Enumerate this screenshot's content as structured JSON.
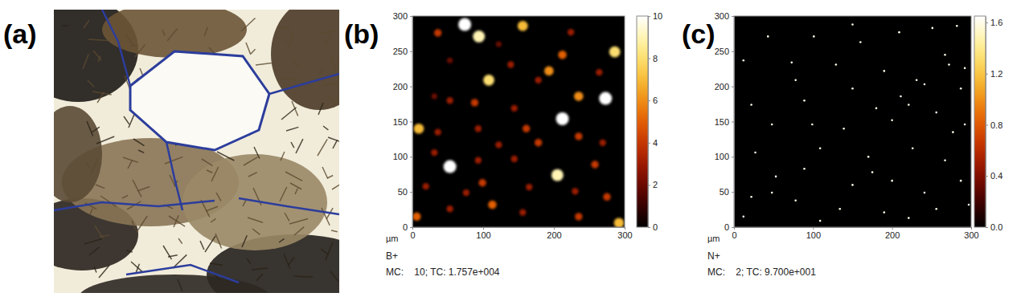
{
  "chart_data": [
    {
      "type": "image",
      "title": "(a)"
    },
    {
      "type": "heatmap",
      "title": "(b)",
      "x_label": "µm",
      "ion": "B+",
      "stats": "MC:    10; TC: 1.757e+004",
      "xlim": [
        0,
        300
      ],
      "ylim": [
        0,
        300
      ],
      "xticks": [
        0,
        100,
        200,
        300
      ],
      "yticks": [
        0,
        50,
        100,
        150,
        200,
        250,
        300
      ],
      "x": [
        74,
        94,
        156,
        108,
        212,
        193,
        235,
        273,
        286,
        212,
        53,
        205,
        113,
        9,
        6,
        292,
        36,
        139,
        178,
        53,
        88,
        144,
        161,
        93,
        36,
        235,
        269,
        122,
        178,
        31,
        93,
        144,
        258,
        99,
        19,
        165,
        230,
        275,
        53,
        156,
        235,
        76,
        264,
        31,
        224,
        122,
        53
      ],
      "y": [
        288,
        271,
        286,
        209,
        245,
        222,
        186,
        183,
        249,
        154,
        86,
        74,
        32,
        140,
        15,
        6,
        276,
        231,
        209,
        180,
        177,
        169,
        140,
        140,
        135,
        129,
        120,
        117,
        120,
        106,
        95,
        97,
        89,
        63,
        58,
        57,
        51,
        43,
        26,
        21,
        15,
        49,
        220,
        186,
        277,
        260,
        237
      ],
      "values": [
        10,
        9,
        7,
        8,
        5,
        6,
        6,
        10,
        8,
        10,
        10,
        9,
        5,
        7,
        5,
        7,
        4,
        3,
        3,
        3,
        4,
        3,
        4,
        3,
        3,
        4,
        3,
        3,
        4,
        3,
        3,
        3,
        4,
        4,
        3,
        3,
        3,
        4,
        3,
        3,
        4,
        3,
        3,
        2,
        3,
        2,
        2
      ],
      "colorbar_range": [
        0,
        10
      ],
      "colorbar_ticks": [
        0,
        2,
        4,
        6,
        8,
        10
      ]
    },
    {
      "type": "heatmap",
      "title": "(c)",
      "x_label": "µm",
      "ion": "N+",
      "stats": "MC:    2; TC: 9.700e+001",
      "xlim": [
        0,
        300
      ],
      "ylim": [
        0,
        300
      ],
      "xticks": [
        0,
        100,
        200,
        300
      ],
      "yticks": [
        0,
        50,
        100,
        150,
        200,
        250,
        300
      ],
      "x": [
        43,
        101,
        160,
        209,
        251,
        282,
        150,
        12,
        73,
        129,
        190,
        272,
        292,
        78,
        150,
        211,
        241,
        287,
        22,
        89,
        180,
        221,
        256,
        48,
        99,
        139,
        200,
        277,
        292,
        27,
        109,
        170,
        226,
        267,
        89,
        53,
        150,
        200,
        241,
        287,
        22,
        78,
        134,
        190,
        256,
        297,
        12,
        109,
        221,
        48,
        175,
        231,
        267
      ],
      "y": [
        271,
        271,
        263,
        277,
        283,
        286,
        288,
        237,
        234,
        231,
        222,
        231,
        226,
        209,
        197,
        186,
        203,
        197,
        174,
        180,
        169,
        174,
        163,
        146,
        146,
        140,
        152,
        135,
        146,
        106,
        112,
        100,
        112,
        95,
        83,
        72,
        60,
        66,
        49,
        66,
        43,
        38,
        26,
        21,
        26,
        32,
        15,
        9,
        13,
        49,
        78,
        209,
        245
      ],
      "values": [
        1.6,
        1.6,
        1.6,
        1.6,
        1.6,
        1.6,
        1.6,
        1.6,
        1.6,
        1.6,
        1.6,
        1.6,
        1.6,
        1.6,
        1.6,
        1.6,
        1.6,
        1.6,
        1.6,
        1.6,
        1.6,
        1.6,
        1.6,
        1.6,
        1.6,
        1.6,
        1.6,
        1.6,
        1.6,
        1.6,
        1.6,
        1.6,
        1.6,
        1.6,
        1.6,
        1.6,
        1.6,
        1.6,
        1.6,
        1.6,
        1.6,
        1.6,
        1.6,
        1.6,
        1.6,
        1.6,
        1.6,
        1.6,
        1.6,
        1.6,
        1.6,
        1.6,
        1.6
      ],
      "colorbar_range": [
        0,
        1.65
      ],
      "colorbar_ticks": [
        {
          "value": 0,
          "label": "0.0"
        },
        0.4,
        0.8,
        1.2,
        1.6
      ]
    }
  ]
}
